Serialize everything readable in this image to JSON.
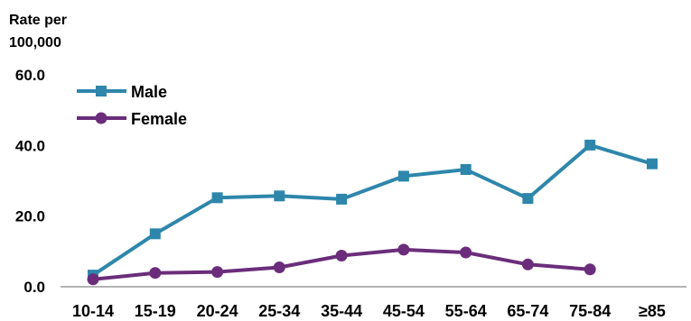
{
  "chart_data": {
    "type": "line",
    "title": "",
    "ylabel_lines": [
      "Rate per",
      "100,000"
    ],
    "xlabel": "",
    "categories": [
      "10-14",
      "15-19",
      "20-24",
      "25-34",
      "35-44",
      "45-54",
      "55-64",
      "65-74",
      "75-84",
      "≥85"
    ],
    "y_ticks": [
      "0.0",
      "20.0",
      "40.0",
      "60.0"
    ],
    "ylim": [
      0,
      60
    ],
    "grid": false,
    "legend_position": "top-left",
    "series": [
      {
        "name": "Male",
        "marker": "square",
        "color": "#2E86AB",
        "values": [
          3.3,
          15.0,
          25.2,
          25.7,
          24.8,
          31.3,
          33.2,
          25.0,
          40.1,
          34.8
        ]
      },
      {
        "name": "Female",
        "marker": "circle",
        "color": "#6B2D7B",
        "values": [
          2.1,
          3.9,
          4.2,
          5.5,
          8.8,
          10.5,
          9.7,
          6.3,
          4.9,
          null
        ]
      }
    ]
  }
}
